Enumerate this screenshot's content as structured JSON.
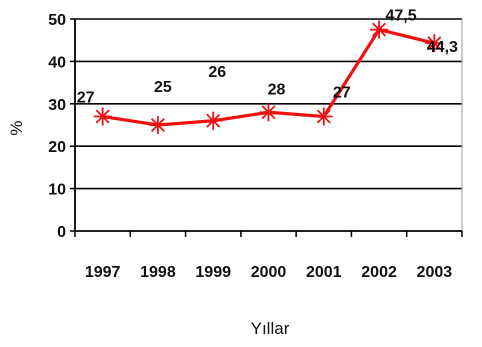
{
  "chart_data": {
    "type": "line",
    "x": [
      "1997",
      "1998",
      "1999",
      "2000",
      "2001",
      "2002",
      "2003"
    ],
    "series": [
      {
        "values": [
          27,
          25,
          26,
          28,
          27,
          47.5,
          44.3
        ]
      }
    ],
    "data_labels": [
      "27",
      "25",
      "26",
      "28",
      "27",
      "47,5",
      "44,3"
    ],
    "y_ticks": [
      "0",
      "10",
      "20",
      "30",
      "40",
      "50"
    ],
    "xlabel": "Yıllar",
    "ylabel": "%",
    "ylim": [
      0,
      50
    ],
    "grid": true,
    "line_color": "#ee1111",
    "marker": "asterisk"
  }
}
